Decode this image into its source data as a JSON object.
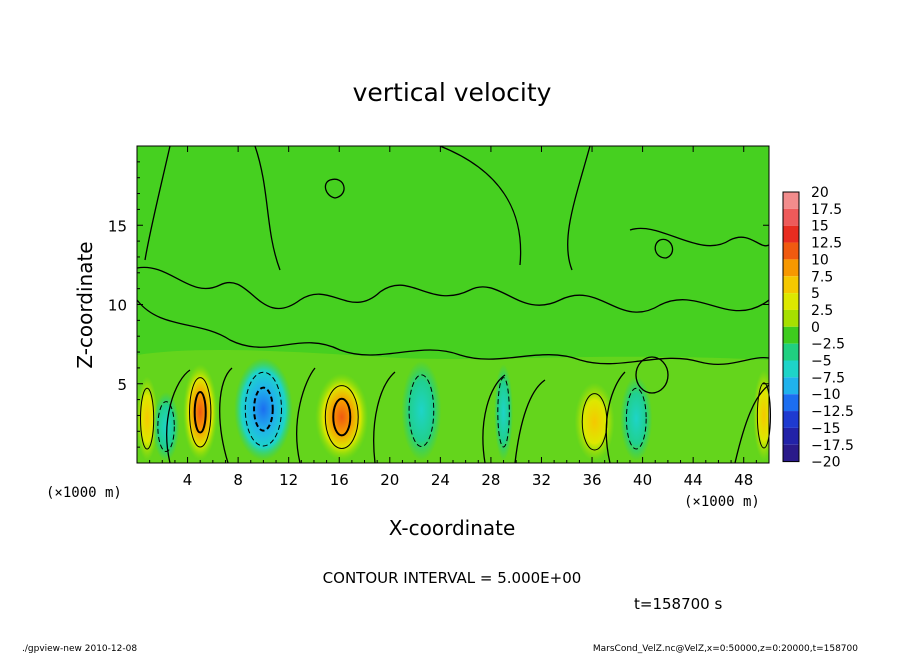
{
  "chart_data": {
    "type": "heatmap",
    "title": "vertical velocity",
    "xlabel": "X-coordinate",
    "ylabel": "Z-coordinate",
    "x_unit_left": "(×1000 m)",
    "x_unit_right": "(×1000 m)",
    "xlim": [
      0,
      50
    ],
    "ylim": [
      0,
      20
    ],
    "x_ticks": [
      4,
      8,
      12,
      16,
      20,
      24,
      28,
      32,
      36,
      40,
      44,
      48
    ],
    "x_tick_labels": [
      "4",
      "8",
      "12",
      "16",
      "20",
      "24",
      "28",
      "32",
      "36",
      "40",
      "44",
      "48"
    ],
    "y_ticks": [
      5,
      10,
      15
    ],
    "y_tick_labels": [
      "5",
      "10",
      "15"
    ],
    "colorbar": {
      "levels": [
        20,
        17.5,
        15,
        12.5,
        10,
        7.5,
        5,
        2.5,
        0,
        -2.5,
        -5,
        -7.5,
        -10,
        -12.5,
        -15,
        -17.5,
        -20
      ],
      "labels": [
        "20",
        "17.5",
        "15",
        "12.5",
        "10",
        "7.5",
        "5",
        "2.5",
        "0",
        "−2.5",
        "−5",
        "−7.5",
        "−10",
        "−12.5",
        "−15",
        "−17.5",
        "−20"
      ],
      "colors": [
        "#f28c8c",
        "#ee5a5a",
        "#e82c20",
        "#f05a10",
        "#f79800",
        "#f5c800",
        "#dde800",
        "#a6e000",
        "#3ecc1e",
        "#20d080",
        "#1ed4c8",
        "#20b2ec",
        "#1c6ef0",
        "#1e3ad0",
        "#2222a8",
        "#2a1a8a",
        "#6a0aa8"
      ]
    },
    "cells": [
      {
        "x": 0.8,
        "z": 2.8,
        "w": 0.8,
        "value": 5
      },
      {
        "x": 2.3,
        "z": 2.3,
        "w": 1.0,
        "value": -5
      },
      {
        "x": 5.0,
        "z": 3.2,
        "w": 1.3,
        "value": 12.5
      },
      {
        "x": 10.0,
        "z": 3.4,
        "w": 2.2,
        "value": -10
      },
      {
        "x": 16.2,
        "z": 2.9,
        "w": 2.0,
        "value": 12.5
      },
      {
        "x": 22.5,
        "z": 3.3,
        "w": 1.5,
        "value": -5
      },
      {
        "x": 29.0,
        "z": 3.2,
        "w": 0.7,
        "value": -5
      },
      {
        "x": 36.2,
        "z": 2.6,
        "w": 1.5,
        "value": 5
      },
      {
        "x": 39.5,
        "z": 2.8,
        "w": 1.2,
        "value": -5
      },
      {
        "x": 49.6,
        "z": 3.0,
        "w": 0.8,
        "value": 5
      }
    ],
    "annotations": {
      "contour_interval": "CONTOUR INTERVAL = 5.000E+00",
      "time": "t=158700 s"
    }
  },
  "footer": {
    "left": "./gpview-new  2010-12-08",
    "right": "MarsCond_VelZ.nc@VelZ,x=0:50000,z=0:20000,t=158700"
  }
}
